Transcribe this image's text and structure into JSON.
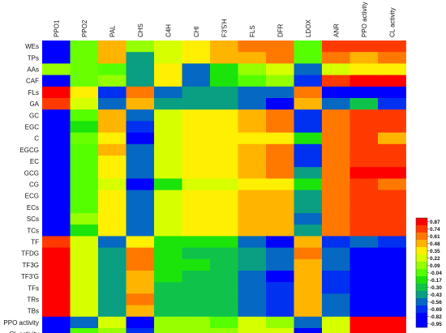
{
  "chart_data": {
    "type": "heatmap",
    "title": "",
    "columns": [
      "PPO1",
      "PPO2",
      "PAL",
      "CHS",
      "C4H",
      "CHI",
      "F3'5'H",
      "FLS",
      "DFR",
      "LDOX",
      "ANR",
      "PPO activity",
      "CL activity"
    ],
    "rows": [
      "WEs",
      "TPs",
      "AAs",
      "CAF",
      "FLs",
      "GA",
      "GC",
      "EGC",
      "C",
      "EGCG",
      "EC",
      "GCG",
      "CG",
      "ECG",
      "ECs",
      "SCs",
      "TCs",
      "TF",
      "TFDG",
      "TF3G",
      "TF3'G",
      "TFs",
      "TRs",
      "TBs",
      "PPO activity",
      "CL activity"
    ],
    "values": [
      [
        -0.95,
        0.0,
        0.48,
        0.09,
        0.22,
        0.35,
        0.48,
        0.61,
        0.61,
        -0.04,
        0.74,
        0.74,
        0.74
      ],
      [
        -0.95,
        0.0,
        0.48,
        -0.43,
        0.22,
        0.35,
        0.48,
        0.48,
        0.61,
        -0.04,
        0.61,
        0.48,
        0.61
      ],
      [
        0.09,
        0.0,
        -0.04,
        -0.43,
        0.35,
        -0.56,
        -0.17,
        0.09,
        0.22,
        -0.56,
        0.22,
        0.35,
        0.35
      ],
      [
        -0.95,
        0.0,
        0.09,
        -0.43,
        0.35,
        -0.56,
        -0.17,
        -0.04,
        0.09,
        -0.69,
        0.74,
        0.87,
        0.87
      ],
      [
        0.87,
        0.35,
        -0.69,
        0.61,
        -0.56,
        -0.43,
        -0.43,
        -0.56,
        -0.56,
        0.61,
        -0.82,
        -0.95,
        -0.95
      ],
      [
        0.74,
        0.22,
        -0.56,
        0.48,
        -0.43,
        -0.43,
        -0.43,
        -0.56,
        -0.82,
        0.48,
        -0.56,
        -0.3,
        -0.69
      ],
      [
        -0.95,
        -0.04,
        0.48,
        -0.56,
        0.22,
        0.35,
        0.35,
        0.48,
        0.61,
        -0.69,
        0.61,
        0.74,
        0.74
      ],
      [
        -0.95,
        -0.17,
        0.48,
        -0.69,
        0.22,
        0.35,
        0.35,
        0.48,
        0.61,
        -0.69,
        0.61,
        0.74,
        0.74
      ],
      [
        -0.95,
        0.0,
        0.35,
        -0.95,
        0.22,
        0.35,
        0.35,
        0.35,
        0.35,
        -0.17,
        0.61,
        0.74,
        0.48
      ],
      [
        -0.95,
        -0.04,
        0.48,
        -0.56,
        0.22,
        0.35,
        0.35,
        0.48,
        0.61,
        -0.69,
        0.61,
        0.74,
        0.74
      ],
      [
        -0.95,
        -0.04,
        0.35,
        -0.56,
        0.22,
        0.35,
        0.35,
        0.48,
        0.61,
        -0.69,
        0.61,
        0.74,
        0.74
      ],
      [
        -0.95,
        -0.04,
        0.35,
        -0.56,
        0.22,
        0.35,
        0.35,
        0.48,
        0.61,
        -0.43,
        0.61,
        0.87,
        0.87
      ],
      [
        -0.95,
        -0.04,
        0.22,
        -0.95,
        -0.17,
        0.22,
        0.22,
        0.35,
        0.35,
        -0.17,
        0.61,
        0.74,
        0.61
      ],
      [
        -0.95,
        -0.04,
        0.35,
        -0.56,
        0.22,
        0.35,
        0.35,
        0.48,
        0.48,
        -0.43,
        0.61,
        0.74,
        0.74
      ],
      [
        -0.95,
        -0.04,
        0.35,
        -0.56,
        0.22,
        0.35,
        0.35,
        0.48,
        0.48,
        -0.43,
        0.61,
        0.74,
        0.74
      ],
      [
        -0.95,
        0.09,
        0.35,
        -0.56,
        0.22,
        0.35,
        0.35,
        0.48,
        0.48,
        -0.56,
        0.61,
        0.74,
        0.74
      ],
      [
        -0.95,
        -0.17,
        0.35,
        -0.56,
        0.22,
        0.35,
        0.35,
        0.48,
        0.48,
        -0.43,
        0.61,
        0.74,
        0.74
      ],
      [
        0.74,
        0.22,
        -0.56,
        0.35,
        -0.17,
        -0.17,
        -0.17,
        -0.56,
        -0.82,
        0.48,
        -0.69,
        -0.56,
        -0.69
      ],
      [
        0.87,
        0.22,
        -0.43,
        0.61,
        -0.17,
        -0.3,
        -0.3,
        -0.43,
        -0.56,
        0.61,
        -0.56,
        -0.95,
        -0.95
      ],
      [
        0.87,
        0.22,
        -0.43,
        0.61,
        -0.17,
        -0.17,
        -0.3,
        -0.43,
        -0.56,
        0.48,
        -0.56,
        -0.95,
        -0.95
      ],
      [
        0.87,
        0.22,
        -0.43,
        0.48,
        -0.17,
        -0.3,
        -0.3,
        -0.56,
        -0.82,
        0.48,
        -0.69,
        -0.95,
        -0.95
      ],
      [
        0.87,
        0.22,
        -0.43,
        0.48,
        -0.3,
        -0.3,
        -0.3,
        -0.56,
        -0.69,
        0.48,
        -0.69,
        -0.95,
        -0.95
      ],
      [
        0.87,
        0.22,
        -0.43,
        0.61,
        -0.3,
        -0.3,
        -0.3,
        -0.56,
        -0.69,
        0.48,
        -0.56,
        -0.95,
        -0.95
      ],
      [
        0.87,
        0.22,
        -0.43,
        0.48,
        -0.3,
        -0.3,
        -0.3,
        -0.56,
        -0.69,
        0.48,
        -0.56,
        -0.95,
        -0.95
      ],
      [
        -0.95,
        -0.56,
        0.22,
        -0.95,
        0.09,
        0.09,
        -0.04,
        0.22,
        0.09,
        -0.56,
        0.22,
        0.87,
        0.87
      ],
      [
        -0.82,
        -0.04,
        0.09,
        -0.69,
        0.09,
        0.09,
        0.09,
        0.22,
        0.22,
        -0.82,
        0.22,
        0.87,
        0.87
      ]
    ],
    "colorbar": {
      "ticks": [
        "0.87",
        "0.74",
        "0.61",
        "0.48",
        "0.35",
        "0.22",
        "0.09",
        "-0.04",
        "-0.17",
        "-0.30",
        "-0.43",
        "-0.56",
        "-0.69",
        "-0.82",
        "-0.95"
      ],
      "colors": [
        "#ff0000",
        "#ff3a00",
        "#ff7800",
        "#ffb400",
        "#ffef00",
        "#d6ff00",
        "#96ff00",
        "#55ff00",
        "#1be40b",
        "#0fc34a",
        "#0a9e82",
        "#0568c3",
        "#0030f0",
        "#0000ff",
        "#0000ff"
      ],
      "range": [
        -0.95,
        0.87
      ]
    }
  }
}
